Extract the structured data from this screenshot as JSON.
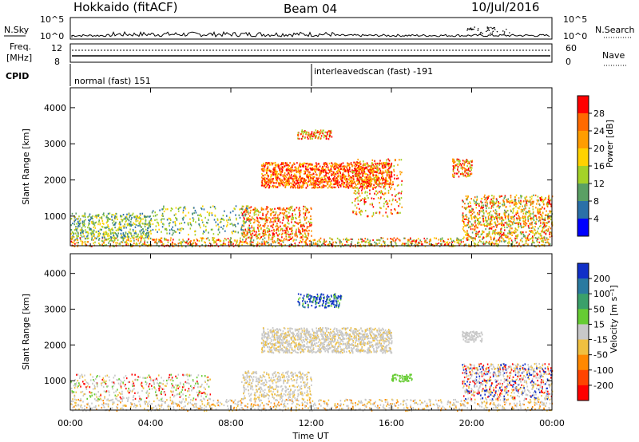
{
  "header": {
    "station": "Hokkaido (fitACF)",
    "beam": "Beam 04",
    "date": "10/Jul/2016"
  },
  "top_panel": {
    "left_label_nsky": "N.Sky",
    "left_ticks": [
      "10^5",
      "10^0"
    ],
    "right_ticks": [
      "10^5",
      "10^0"
    ],
    "right_label": "N.Search"
  },
  "freq_panel": {
    "left_label_line1": "Freq.",
    "left_label_line2": "[MHz]",
    "left_ticks": [
      "12",
      "8"
    ],
    "right_ticks": [
      "60",
      "0"
    ],
    "right_label": "Nave"
  },
  "cpid_panel": {
    "label": "CPID",
    "mode1": "normal (fast) 151",
    "mode2": "interleavedscan (fast) -191"
  },
  "chart_data": [
    {
      "type": "heatmap",
      "name": "Power",
      "ylabel": "Slant Range [km]",
      "yticks": [
        1000,
        2000,
        3000,
        4000
      ],
      "colorbar_label": "Power [dB]",
      "colorbar_ticks": [
        "28",
        "24",
        "20",
        "16",
        "12",
        "8",
        "4"
      ],
      "colorbar_colors": [
        "#ff0000",
        "#ff6a00",
        "#ff9d00",
        "#ffd200",
        "#a4d228",
        "#5aa064",
        "#2a70a8",
        "#0000ff"
      ]
    },
    {
      "type": "heatmap",
      "name": "Velocity",
      "ylabel": "Slant Range [km]",
      "yticks": [
        1000,
        2000,
        3000,
        4000
      ],
      "colorbar_label": "Velocity [m s⁻¹]",
      "colorbar_ticks": [
        "200",
        "100",
        "50",
        "15",
        "-15",
        "-50",
        "-100",
        "-200"
      ],
      "colorbar_colors": [
        "#1030c8",
        "#2a7aa0",
        "#3aa06a",
        "#66cc33",
        "#c8c8c8",
        "#f0c040",
        "#ff8800",
        "#ff4400",
        "#ff0000"
      ],
      "xlabel": "Time UT",
      "xticks": [
        "00:00",
        "04:00",
        "08:00",
        "12:00",
        "16:00",
        "20:00",
        "00:00"
      ]
    }
  ]
}
